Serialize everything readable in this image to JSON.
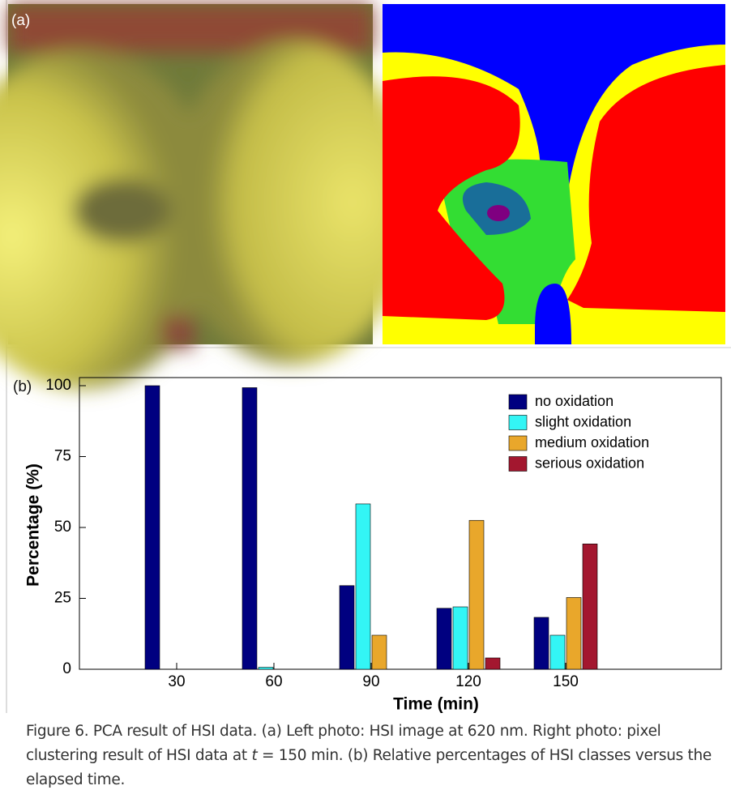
{
  "panel_a_label": "(a)",
  "chart_data": {
    "type": "bar",
    "panel_label": "(b)",
    "x": [
      30,
      60,
      90,
      120,
      150
    ],
    "xlim": [
      0,
      198
    ],
    "xticks": [
      30,
      60,
      90,
      120,
      150
    ],
    "ylim": [
      0,
      100
    ],
    "yticks": [
      0,
      25,
      50,
      75,
      100
    ],
    "xlabel": "Time (min)",
    "ylabel": "Percentage (%)",
    "legend": "upper-right",
    "series": [
      {
        "name": "no oxidation",
        "color": "#000080",
        "values": [
          100,
          99.3,
          29.5,
          21.5,
          18.3
        ]
      },
      {
        "name": "slight oxidation",
        "color": "#33f5f5",
        "values": [
          0,
          0.7,
          58.3,
          22,
          12
        ]
      },
      {
        "name": "medium oxidation",
        "color": "#e9a72b",
        "values": [
          0,
          0,
          12,
          52.5,
          25.3
        ]
      },
      {
        "name": "serious oxidation",
        "color": "#a3172f",
        "values": [
          0,
          0,
          0,
          4,
          44.2
        ]
      }
    ]
  },
  "caption": {
    "before": "Figure 6. PCA result of HSI data. (a) Left photo: HSI image at 620 nm. Right photo: pixel clustering result of HSI data at ",
    "italic": "t",
    "after": " = 150 min. (b) Relative percentages of HSI classes versus the elapsed time."
  }
}
